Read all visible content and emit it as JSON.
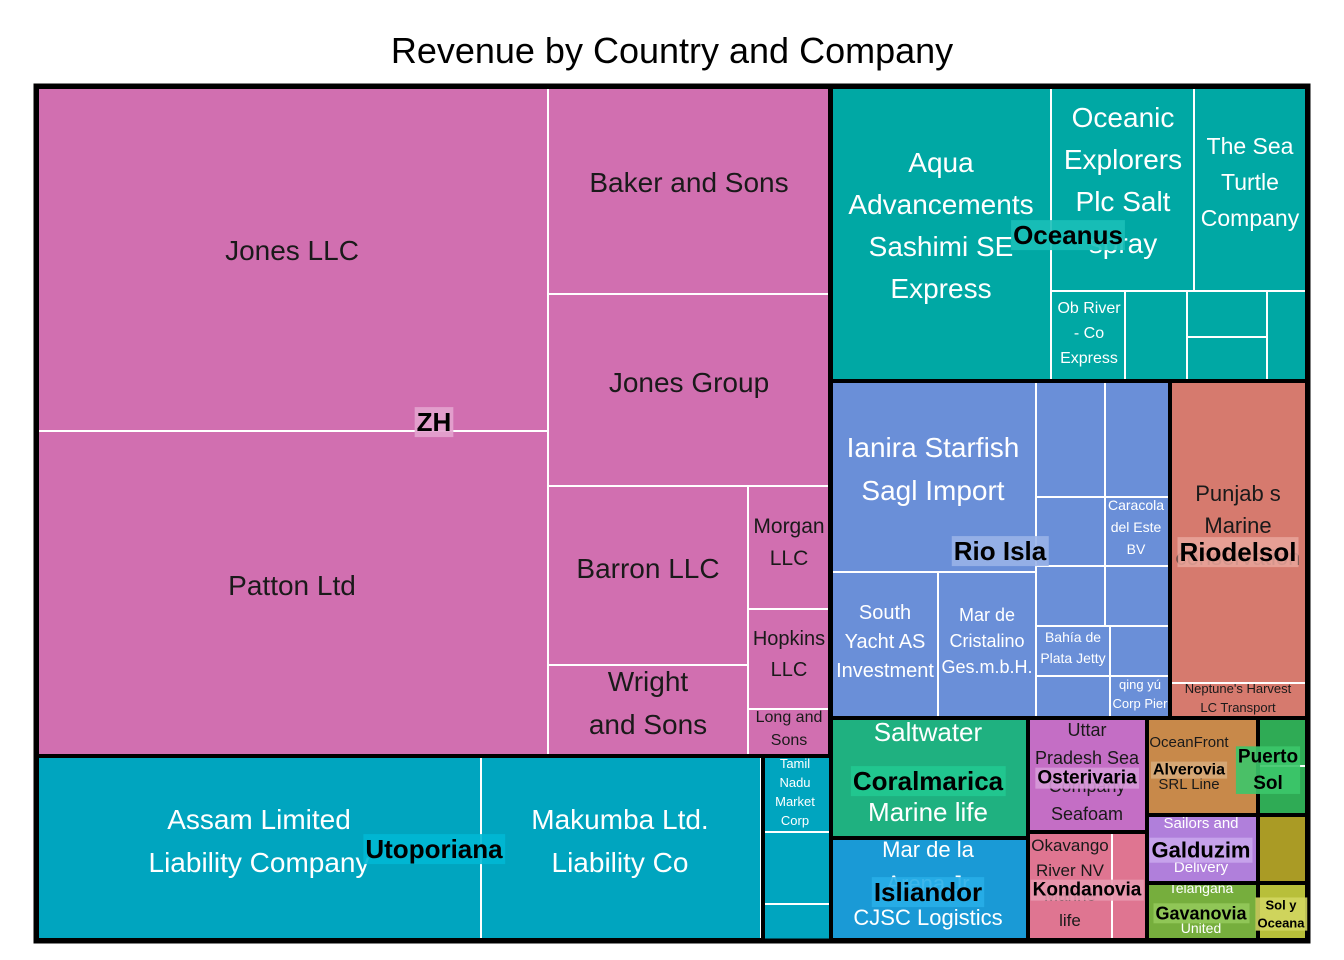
{
  "chart_data": {
    "type": "treemap",
    "title": "Revenue by Country and Company",
    "groups": [
      {
        "name": "ZH",
        "color": "#d16fb0",
        "companies": [
          {
            "name": "Jones LLC"
          },
          {
            "name": "Patton Ltd"
          },
          {
            "name": "Baker and Sons"
          },
          {
            "name": "Jones Group"
          },
          {
            "name": "Barron LLC"
          },
          {
            "name": "Morgan LLC"
          },
          {
            "name": "Hopkins LLC"
          },
          {
            "name": "Wright and Sons"
          },
          {
            "name": "Long and Sons"
          }
        ]
      },
      {
        "name": "Utoporiana",
        "color": "#00a5bf",
        "companies": [
          {
            "name": "Assam Limited Liability Company"
          },
          {
            "name": "Makumba Ltd. Liability Co"
          },
          {
            "name": "Tamil Nadu Market Corp"
          },
          {
            "name": ""
          },
          {
            "name": ""
          }
        ]
      },
      {
        "name": "Oceanus",
        "color": "#00a8a4",
        "companies": [
          {
            "name": "Aqua Advancements Sashimi SE Express"
          },
          {
            "name": "Oceanic Explorers Plc Salt spray"
          },
          {
            "name": "The Sea Turtle Company"
          },
          {
            "name": "Ob River - Co Express"
          },
          {
            "name": ""
          },
          {
            "name": ""
          },
          {
            "name": ""
          },
          {
            "name": ""
          }
        ]
      },
      {
        "name": "Rio Isla",
        "color": "#6a8fd8",
        "companies": [
          {
            "name": "Ianira Starfish Sagl Import"
          },
          {
            "name": "South Yacht AS Investment"
          },
          {
            "name": "Mar de Cristalino Ges.m.b.H."
          },
          {
            "name": "Caracola del Este BV"
          },
          {
            "name": "Bahía de Plata Jetty"
          },
          {
            "name": "qing yú Corp Pier"
          },
          {
            "name": ""
          },
          {
            "name": ""
          },
          {
            "name": ""
          },
          {
            "name": ""
          },
          {
            "name": ""
          },
          {
            "name": ""
          },
          {
            "name": ""
          }
        ]
      },
      {
        "name": "Riodelsol",
        "color": "#d67a6e",
        "companies": [
          {
            "name": "Punjab s Marine conservation"
          },
          {
            "name": "Neptune's Harvest LC Transport"
          }
        ]
      },
      {
        "name": "Coralmarica",
        "color": "#1fb180",
        "companies": [
          {
            "name": "Saltwater Marine life"
          }
        ]
      },
      {
        "name": "Osterivaria",
        "color": "#c46ec5",
        "companies": [
          {
            "name": "Uttar Pradesh Sea Company Seafoam"
          }
        ]
      },
      {
        "name": "Alverovia",
        "color": "#c8894a",
        "companies": [
          {
            "name": "OceanFront SRL Line"
          }
        ]
      },
      {
        "name": "Puerto Sol",
        "color": "#2fab55",
        "companies": [
          {
            "name": ""
          },
          {
            "name": ""
          }
        ]
      },
      {
        "name": "Isliandor",
        "color": "#1a9ad6",
        "companies": [
          {
            "name": "Mar de la Arena Jr CJSC Logistics"
          }
        ]
      },
      {
        "name": "Kondanovia",
        "color": "#df7591",
        "companies": [
          {
            "name": "Okavango River NV Marine life"
          },
          {
            "name": ""
          }
        ]
      },
      {
        "name": "Galduzim",
        "color": "#b07fdb",
        "companies": [
          {
            "name": "Sailors and Delivery"
          }
        ]
      },
      {
        "name": "Gavanovia",
        "color": "#76ae3d",
        "companies": [
          {
            "name": "Telangana United"
          }
        ]
      },
      {
        "name": "",
        "color": "#aa9b25",
        "companies": [
          {
            "name": ""
          }
        ]
      },
      {
        "name": "Sol y Oceana",
        "color": "#b8bf3a",
        "companies": [
          {
            "name": ""
          }
        ]
      }
    ]
  }
}
